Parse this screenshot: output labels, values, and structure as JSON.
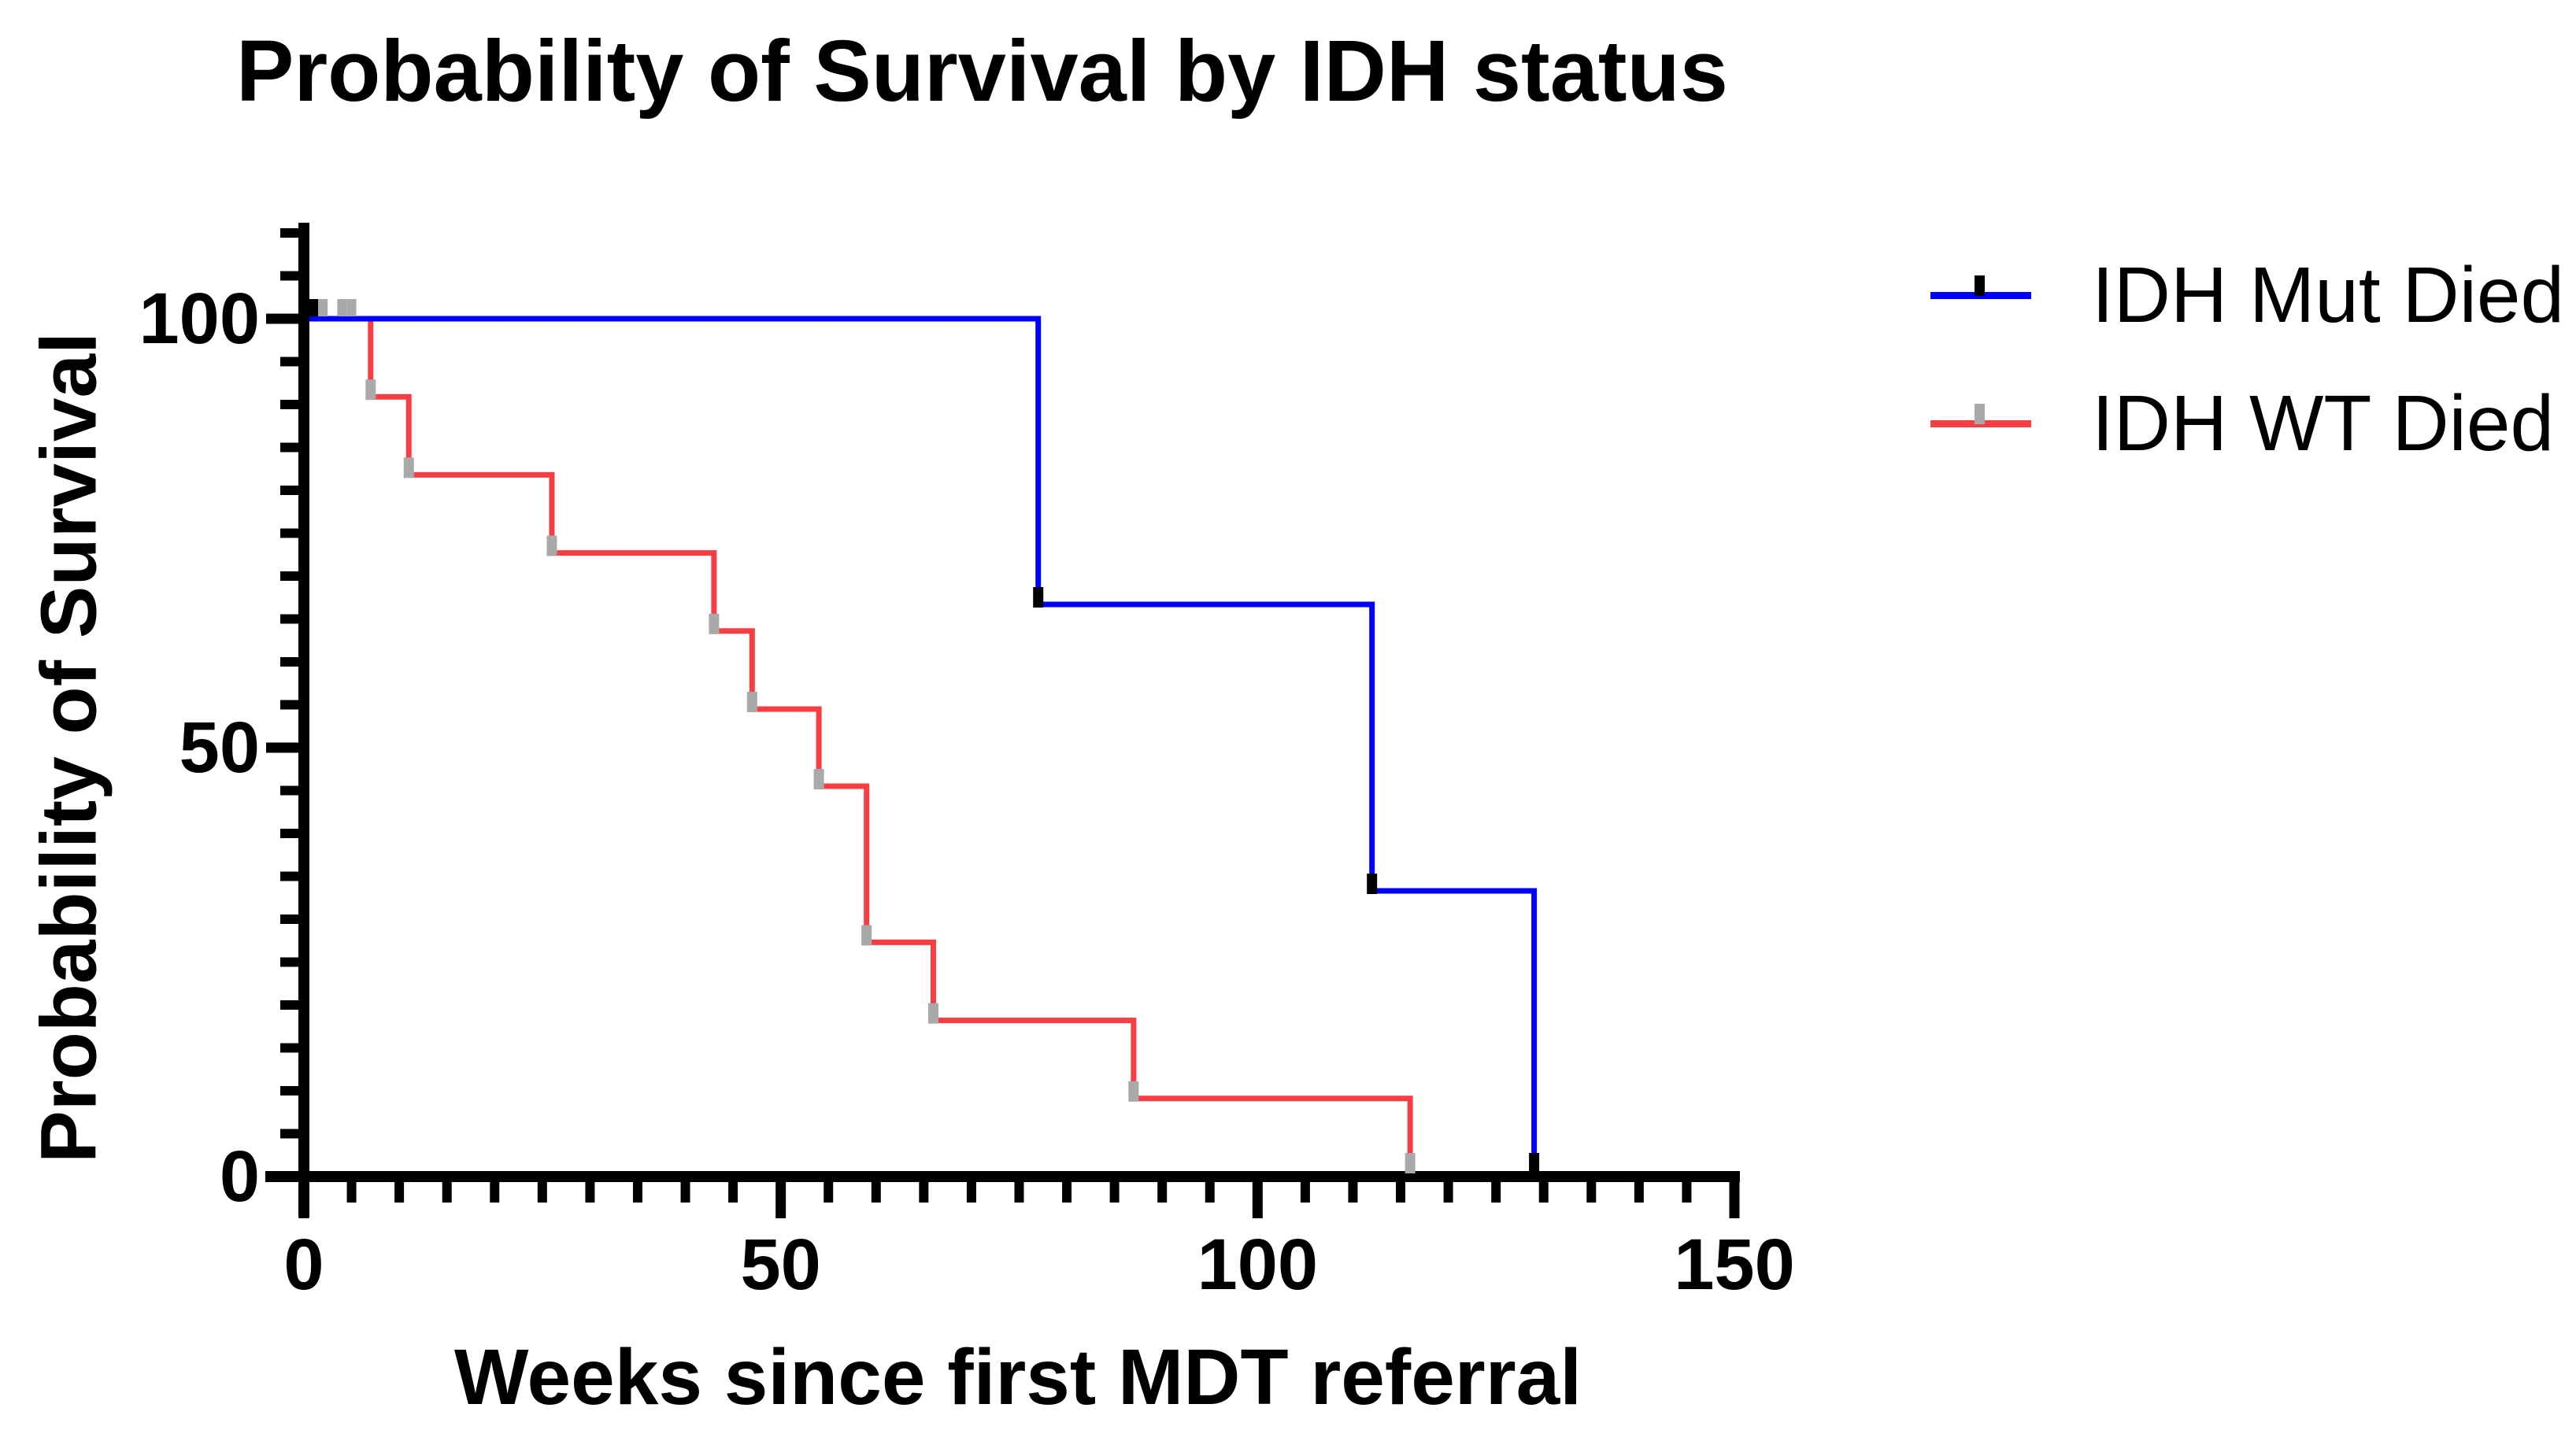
{
  "title": "Probability of Survival by IDH status",
  "colors": {
    "background": "#ffffff",
    "axis": "#000000",
    "text": "#000000",
    "mut_line": "#0000fb",
    "mut_marker": "#000000",
    "wt_line": "#f83e42",
    "wt_marker": "#a9a9a9"
  },
  "chart_data": {
    "type": "line",
    "subtype": "kaplan-meier-survival-step",
    "title": "Probability of Survival by IDH status",
    "xlabel": "Weeks since first MDT referral",
    "ylabel": "Probability of Survival",
    "xlim": [
      0,
      150
    ],
    "ylim": [
      0,
      100
    ],
    "xticks": [
      0,
      50,
      100,
      150
    ],
    "yticks": [
      0,
      50,
      100
    ],
    "minor_tick_step_x": 5,
    "minor_tick_step_y": 5,
    "grid": false,
    "legend_position": "right",
    "series": [
      {
        "name": "IDH WT Died",
        "line_color": "#f83e42",
        "marker_color": "#a9a9a9",
        "start": [
          0,
          100
        ],
        "drops": [
          [
            7,
            90.9
          ],
          [
            11,
            81.8
          ],
          [
            26,
            72.7
          ],
          [
            43,
            63.6
          ],
          [
            47,
            54.5
          ],
          [
            54,
            45.5
          ],
          [
            59,
            27.3
          ],
          [
            66,
            18.2
          ],
          [
            87,
            9.1
          ],
          [
            116,
            0
          ]
        ],
        "censored_ticks_weeks": [
          2,
          4,
          5
        ]
      },
      {
        "name": "IDH Mut Died",
        "line_color": "#0000fb",
        "marker_color": "#000000",
        "start": [
          0,
          100
        ],
        "drops": [
          [
            77,
            66.7
          ],
          [
            112,
            33.3
          ],
          [
            129,
            0
          ]
        ],
        "censored_ticks_weeks": [
          1
        ]
      }
    ]
  },
  "legend": {
    "items": [
      {
        "label": "IDH Mut Died"
      },
      {
        "label": "IDH WT Died"
      }
    ]
  }
}
